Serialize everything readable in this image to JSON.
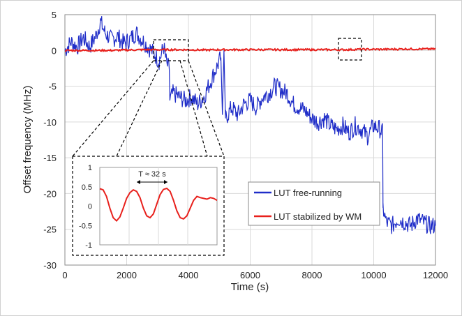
{
  "chart_data": {
    "type": "line",
    "title": "",
    "xlabel": "Time (s)",
    "ylabel": "Offset frequency (MHz)",
    "xlim": [
      0,
      12000
    ],
    "ylim": [
      -30,
      5
    ],
    "x_ticks": [
      "0",
      "2000",
      "4000",
      "6000",
      "8000",
      "10000",
      "12000"
    ],
    "y_ticks": [
      "5",
      "0",
      "-5",
      "-10",
      "-15",
      "-20",
      "-25",
      "-30"
    ],
    "grid": true,
    "legend_position": "right-middle",
    "series": [
      {
        "name": "LUT free-running",
        "color": "#1f2dc8",
        "x": [
          0,
          200,
          400,
          600,
          800,
          1000,
          1150,
          1300,
          1500,
          1700,
          1900,
          2100,
          2300,
          2500,
          2700,
          2900,
          3050,
          3200,
          3300,
          3380,
          3400,
          3500,
          3700,
          3900,
          4100,
          4300,
          4500,
          4700,
          4900,
          5050,
          5100,
          5150,
          5200,
          5400,
          5600,
          5800,
          6000,
          6200,
          6400,
          6600,
          6800,
          7000,
          7200,
          7400,
          7600,
          7800,
          8000,
          8200,
          8400,
          8600,
          8800,
          9000,
          9200,
          9400,
          9600,
          9800,
          10000,
          10200,
          10290,
          10300,
          10400,
          10600,
          10800,
          11000,
          11200,
          11400,
          11600,
          11800,
          12000
        ],
        "y": [
          0,
          1.2,
          0.5,
          1.8,
          0.5,
          2.0,
          4.0,
          2.5,
          1.5,
          2.0,
          1.0,
          1.5,
          2.5,
          1.5,
          0.5,
          -0.5,
          -1.5,
          0.5,
          -2.0,
          -2.5,
          -7.0,
          -6.0,
          -6.5,
          -7.0,
          -6.5,
          -7.5,
          -6.5,
          -4.5,
          -2.5,
          -1.0,
          -9.0,
          0,
          -9.5,
          -8.0,
          -9.0,
          -7.5,
          -7.0,
          -8.0,
          -6.5,
          -6.0,
          -5.0,
          -5.5,
          -6.0,
          -7.5,
          -8.0,
          -8.5,
          -9.5,
          -10.0,
          -9.5,
          -10.5,
          -11.0,
          -10.5,
          -11.5,
          -10.5,
          -11.0,
          -12.0,
          -10.5,
          -11.0,
          -11.5,
          -22.0,
          -24.0,
          -24.5,
          -23.5,
          -24.0,
          -24.5,
          -23.5,
          -24.0,
          -24.5,
          -24.5
        ]
      },
      {
        "name": "LUT stabilized by WM",
        "color": "#e8201c",
        "x": [
          0,
          500,
          1000,
          1500,
          2000,
          2500,
          3000,
          3500,
          4000,
          4500,
          5000,
          5500,
          6000,
          6500,
          7000,
          7500,
          8000,
          8500,
          9000,
          9200,
          9500,
          10000,
          10500,
          11000,
          11500,
          12000
        ],
        "y": [
          0,
          0,
          0,
          0,
          0.05,
          0.1,
          0.1,
          0.1,
          0.1,
          0.05,
          0.1,
          0.1,
          0.1,
          0.1,
          0.1,
          0.1,
          0.1,
          0.1,
          0.1,
          0.1,
          0.15,
          0.15,
          0.15,
          0.2,
          0.2,
          0.2
        ]
      }
    ],
    "inset": {
      "type": "line",
      "annotation": "T ≈ 32 s",
      "ylim": [
        -1,
        1
      ],
      "y_ticks": [
        "1",
        "0.5",
        "0",
        "-0.5",
        "-1"
      ],
      "x_range_main": [
        3000,
        3500
      ],
      "series": [
        {
          "name": "LUT stabilized by WM",
          "color": "#e8201c",
          "x": [
            0,
            6,
            12,
            18,
            24,
            30,
            36,
            42,
            48,
            54,
            60,
            66,
            72,
            78,
            84,
            90,
            96,
            102,
            108,
            114,
            120,
            126,
            132,
            138,
            144,
            150,
            156,
            162,
            168,
            174,
            180,
            186,
            192,
            198,
            204,
            210
          ],
          "y": [
            0.45,
            0.42,
            0.25,
            -0.05,
            -0.3,
            -0.38,
            -0.28,
            -0.05,
            0.2,
            0.35,
            0.42,
            0.38,
            0.22,
            -0.05,
            -0.25,
            -0.3,
            -0.2,
            0.05,
            0.3,
            0.43,
            0.46,
            0.38,
            0.15,
            -0.12,
            -0.3,
            -0.33,
            -0.25,
            -0.05,
            0.15,
            0.25,
            0.22,
            0.2,
            0.18,
            0.22,
            0.2,
            0.15
          ]
        }
      ]
    }
  }
}
